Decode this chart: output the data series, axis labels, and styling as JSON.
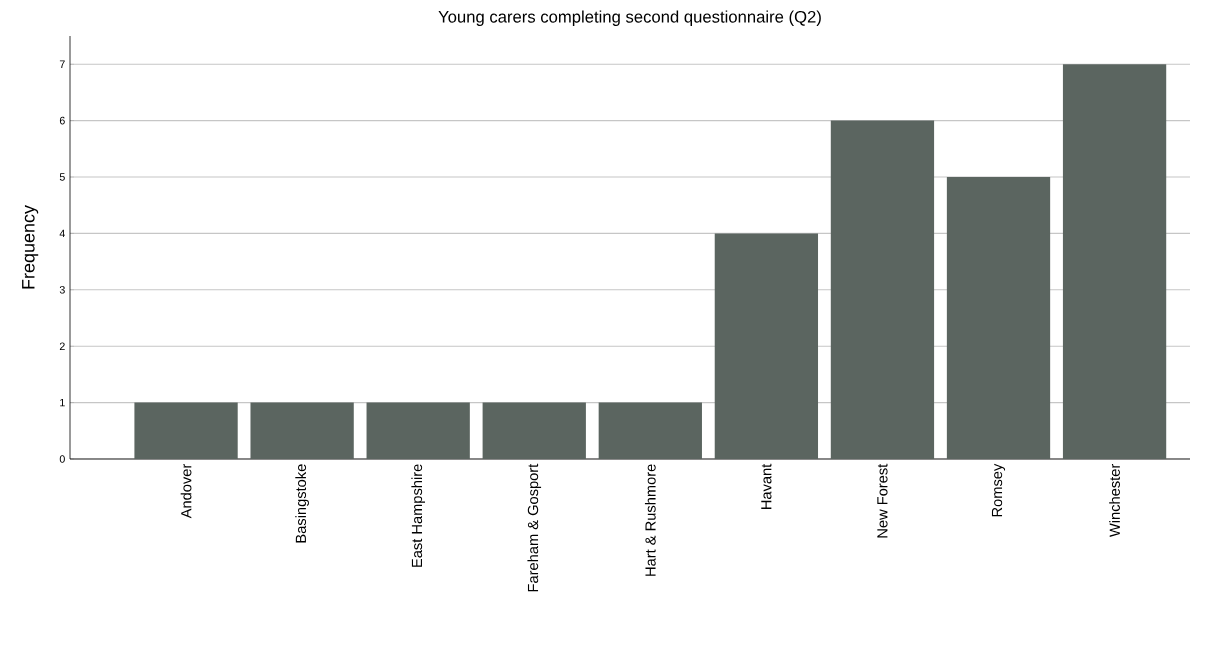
{
  "chart_data": {
    "type": "bar",
    "title": "Young carers completing second questionnaire (Q2)",
    "ylabel": "Frequency",
    "categories": [
      "Andover",
      "Basingstoke",
      "East Hampshire",
      "Fareham & Gosport",
      "Hart & Rushmore",
      "Havant",
      "New Forest",
      "Romsey",
      "Winchester"
    ],
    "values": [
      1,
      1,
      1,
      1,
      1,
      4,
      6,
      5,
      7
    ],
    "color": "#5b6560",
    "ylim": [
      0,
      7.5
    ],
    "yticks": [
      0,
      1,
      2,
      3,
      4,
      5,
      6,
      7
    ],
    "grid": "y"
  }
}
